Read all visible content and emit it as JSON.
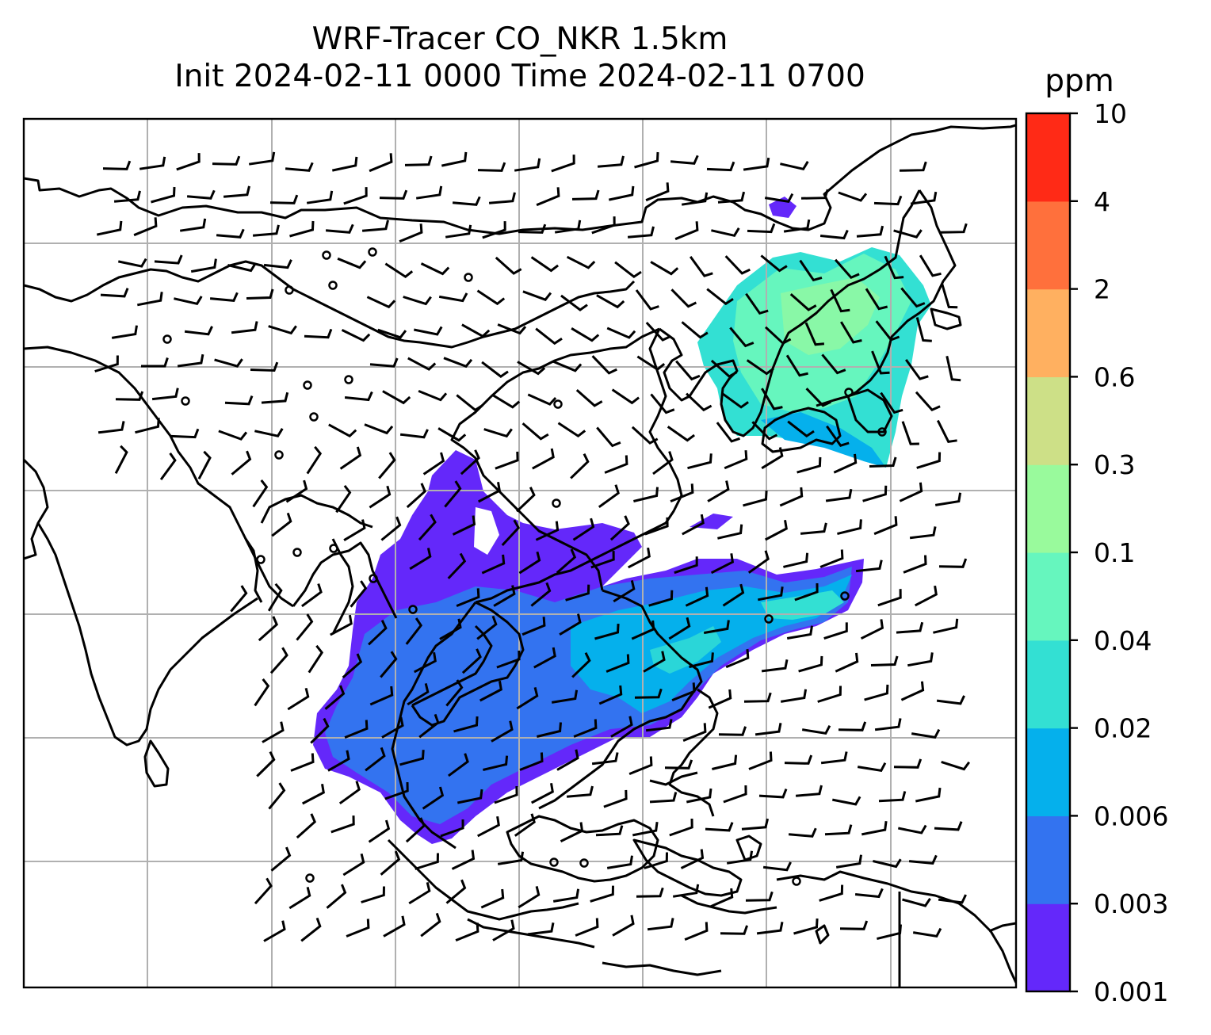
{
  "title": {
    "line1": "WRF-Tracer CO_NKR 1.5km",
    "line2": "Init 2024-02-11 0000 Time 2024-02-11 0700"
  },
  "colorbar": {
    "unit": "ppm",
    "levels": [
      {
        "label": "0.001",
        "color": "#6428fa"
      },
      {
        "label": "0.003",
        "color": "#3373f0"
      },
      {
        "label": "0.006",
        "color": "#05b0ec"
      },
      {
        "label": "0.02",
        "color": "#33e0d3"
      },
      {
        "label": "0.04",
        "color": "#66f6be"
      },
      {
        "label": "0.1",
        "color": "#99fa9c"
      },
      {
        "label": "0.3",
        "color": "#cde087"
      },
      {
        "label": "0.6",
        "color": "#ffb060"
      },
      {
        "label": "2",
        "color": "#ff703c"
      },
      {
        "label": "4",
        "color": "#ff2a16"
      },
      {
        "label": "10",
        "color": ""
      }
    ]
  },
  "map": {
    "gridlines": true,
    "grid_color": "#b0b0b0",
    "coastline_color": "#000000"
  }
}
